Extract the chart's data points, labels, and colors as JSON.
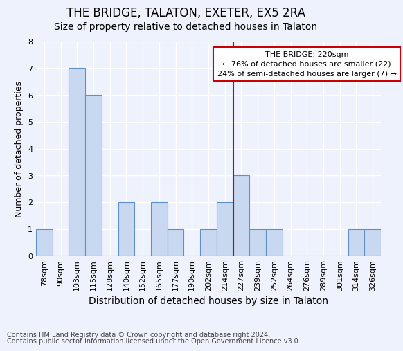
{
  "title_line1": "THE BRIDGE, TALATON, EXETER, EX5 2RA",
  "title_line2": "Size of property relative to detached houses in Talaton",
  "xlabel": "Distribution of detached houses by size in Talaton",
  "ylabel": "Number of detached properties",
  "footer_line1": "Contains HM Land Registry data © Crown copyright and database right 2024.",
  "footer_line2": "Contains public sector information licensed under the Open Government Licence v3.0.",
  "categories": [
    "78sqm",
    "90sqm",
    "103sqm",
    "115sqm",
    "128sqm",
    "140sqm",
    "152sqm",
    "165sqm",
    "177sqm",
    "190sqm",
    "202sqm",
    "214sqm",
    "227sqm",
    "239sqm",
    "252sqm",
    "264sqm",
    "276sqm",
    "289sqm",
    "301sqm",
    "314sqm",
    "326sqm"
  ],
  "values": [
    1,
    0,
    7,
    6,
    0,
    2,
    0,
    2,
    1,
    0,
    1,
    2,
    3,
    1,
    1,
    0,
    0,
    0,
    0,
    1,
    1
  ],
  "bar_color": "#c8d8f0",
  "bar_edge_color": "#6090c8",
  "marker_bin_index": 11,
  "marker_label_line1": "THE BRIDGE: 220sqm",
  "marker_label_line2": "← 76% of detached houses are smaller (22)",
  "marker_label_line3": "24% of semi-detached houses are larger (7) →",
  "marker_color": "#cc0000",
  "ylim": [
    0,
    8
  ],
  "yticks": [
    0,
    1,
    2,
    3,
    4,
    5,
    6,
    7,
    8
  ],
  "background_color": "#eef2fc",
  "grid_color": "#ffffff",
  "title_fontsize": 12,
  "subtitle_fontsize": 10,
  "ylabel_fontsize": 9,
  "xlabel_fontsize": 10,
  "tick_fontsize": 8,
  "annotation_fontsize": 8,
  "footer_fontsize": 7
}
